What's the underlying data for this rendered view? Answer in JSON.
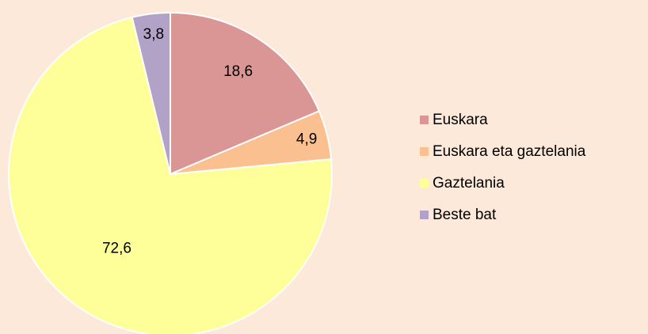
{
  "chart_data": {
    "type": "pie",
    "categories": [
      "Euskara",
      "Euskara eta gaztelania",
      "Gaztelania",
      "Beste bat"
    ],
    "values": [
      18.6,
      4.9,
      72.6,
      3.8
    ],
    "value_labels": [
      "18,6",
      "4,9",
      "72,6",
      "3,8"
    ],
    "colors": [
      "#d99694",
      "#fac090",
      "#ffff99",
      "#b3a2c7"
    ],
    "legend": "right"
  }
}
